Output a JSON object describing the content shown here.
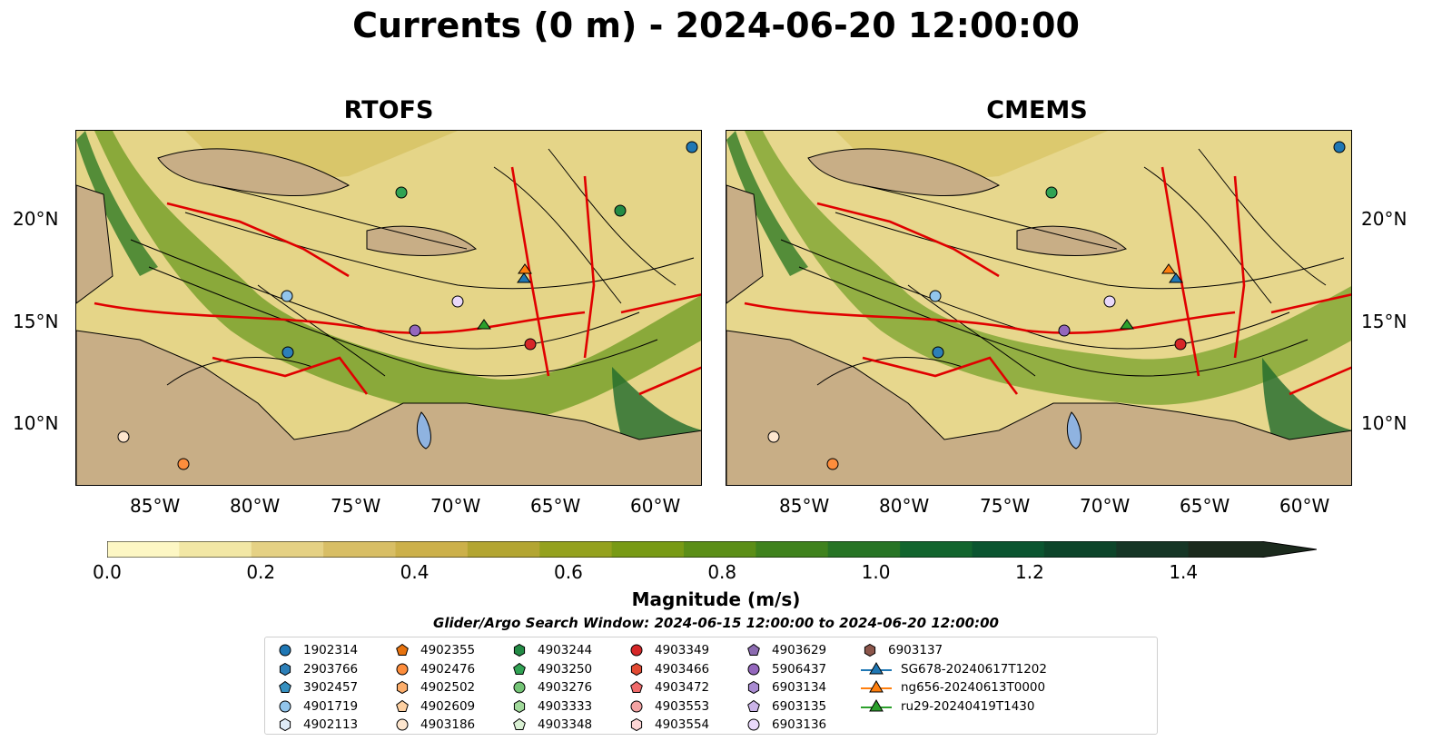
{
  "title": "Currents (0 m) - 2024-06-20 12:00:00",
  "panels": [
    {
      "title": "RTOFS"
    },
    {
      "title": "CMEMS"
    }
  ],
  "axes": {
    "lon_ticks": [
      "85°W",
      "80°W",
      "75°W",
      "70°W",
      "65°W",
      "60°W"
    ],
    "lat_ticks": [
      "20°N",
      "15°N",
      "10°N"
    ]
  },
  "colorbar": {
    "label": "Magnitude (m/s)",
    "ticks": [
      "0.0",
      "0.2",
      "0.4",
      "0.6",
      "0.8",
      "1.0",
      "1.2",
      "1.4"
    ],
    "range": [
      0,
      1.5
    ],
    "colors": [
      "#fdf7c4",
      "#f2e7a5",
      "#e5d184",
      "#d8be65",
      "#ccb04a",
      "#b3a532",
      "#94a11e",
      "#789a15",
      "#5b8e17",
      "#3f821d",
      "#277425",
      "#12652e",
      "#0b5530",
      "#0d452a",
      "#163626",
      "#1b2a1d"
    ]
  },
  "search_window": "Glider/Argo Search Window: 2024-06-15 12:00:00 to 2024-06-20 12:00:00",
  "legend": [
    {
      "label": "1902314",
      "shape": "circle",
      "color": "#1f77b4"
    },
    {
      "label": "2903766",
      "shape": "hexagon",
      "color": "#2c7fb8"
    },
    {
      "label": "3902457",
      "shape": "pentagon",
      "color": "#3690c0"
    },
    {
      "label": "4901719",
      "shape": "circle",
      "color": "#92c5ec"
    },
    {
      "label": "4902113",
      "shape": "hexagon",
      "color": "#deebf7"
    },
    {
      "label": "4902355",
      "shape": "pentagon",
      "color": "#e6720f"
    },
    {
      "label": "4902476",
      "shape": "circle",
      "color": "#fd8d3c"
    },
    {
      "label": "4902502",
      "shape": "hexagon",
      "color": "#fdae6b"
    },
    {
      "label": "4902609",
      "shape": "pentagon",
      "color": "#fdd0a2"
    },
    {
      "label": "4903186",
      "shape": "circle",
      "color": "#fee6ce"
    },
    {
      "label": "4903244",
      "shape": "hexagon",
      "color": "#238b45"
    },
    {
      "label": "4903250",
      "shape": "pentagon",
      "color": "#31a354"
    },
    {
      "label": "4903276",
      "shape": "circle",
      "color": "#74c476"
    },
    {
      "label": "4903333",
      "shape": "hexagon",
      "color": "#a1d99b"
    },
    {
      "label": "4903348",
      "shape": "pentagon",
      "color": "#d9f0d3"
    },
    {
      "label": "4903349",
      "shape": "circle",
      "color": "#d62728"
    },
    {
      "label": "4903466",
      "shape": "hexagon",
      "color": "#e34a33"
    },
    {
      "label": "4903472",
      "shape": "pentagon",
      "color": "#ef6a6a"
    },
    {
      "label": "4903553",
      "shape": "circle",
      "color": "#f4a3a3"
    },
    {
      "label": "4903554",
      "shape": "hexagon",
      "color": "#fcd5d5"
    },
    {
      "label": "4903629",
      "shape": "pentagon",
      "color": "#8c6bb1"
    },
    {
      "label": "5906437",
      "shape": "circle",
      "color": "#9467bd"
    },
    {
      "label": "6903134",
      "shape": "hexagon",
      "color": "#a98bd1"
    },
    {
      "label": "6903135",
      "shape": "pentagon",
      "color": "#cbb4e8"
    },
    {
      "label": "6903136",
      "shape": "circle",
      "color": "#e9d8fa"
    },
    {
      "label": "6903137",
      "shape": "hexagon",
      "color": "#8c564b"
    },
    {
      "label": "SG678-20240617T1202",
      "shape": "triangle",
      "color": "#1f77b4"
    },
    {
      "label": "ng656-20240613T0000",
      "shape": "triangle",
      "color": "#ff7f0e"
    },
    {
      "label": "ru29-20240419T1430",
      "shape": "triangle",
      "color": "#2ca02c"
    }
  ]
}
